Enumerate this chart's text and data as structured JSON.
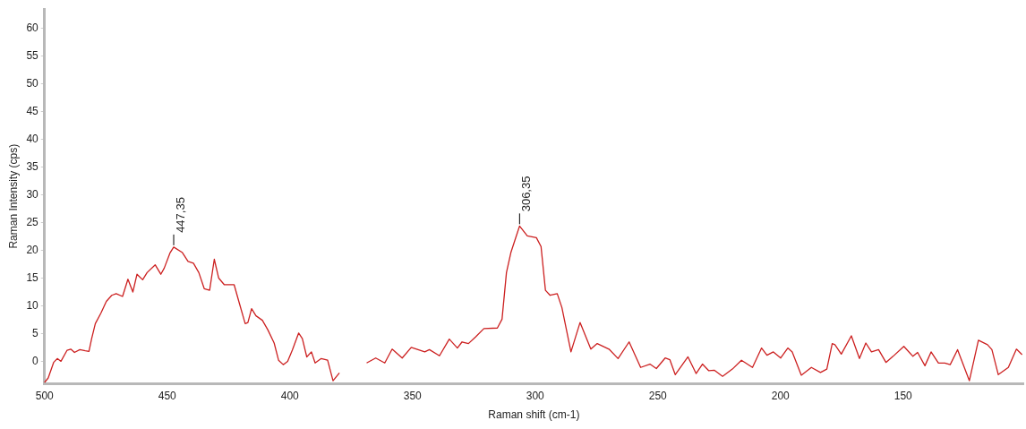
{
  "chart_data": {
    "type": "line",
    "xlabel": "Raman shift (cm-1)",
    "ylabel": "Raman Intensity (cps)",
    "xlim": [
      500,
      101
    ],
    "ylim": [
      -4,
      63.5
    ],
    "xticks": [
      500,
      450,
      400,
      350,
      300,
      250,
      200,
      150
    ],
    "yticks": [
      0,
      5,
      10,
      15,
      20,
      25,
      30,
      35,
      40,
      45,
      50,
      55,
      60
    ],
    "grid": false,
    "legend": false,
    "marker": "none",
    "line_style": "solid",
    "series": [
      {
        "color": "#cc2020",
        "x": [
          500,
          498.5,
          496.3,
          494.8,
          493.3,
          490.8,
          489.3,
          487.8,
          485.6,
          483.4,
          481.9,
          480.8,
          479.3,
          477,
          474.8,
          472.6,
          470.8,
          468.2,
          466,
          464,
          462.3,
          460,
          458.2,
          454.9,
          452.6,
          451.2,
          448.9,
          447.35,
          443.8,
          441.5,
          439.3,
          437.1,
          434.9,
          432.7,
          430.8,
          429,
          426.7,
          425.2,
          422.7,
          420.8,
          418.2,
          417.1,
          415.6,
          413.8,
          411.2,
          409,
          406.4,
          404.6,
          402.7,
          400.9,
          399,
          396.4,
          394.9,
          393.1,
          391.2,
          389.7,
          387.2,
          384.6,
          382.4,
          379.8,
          378,
          372.7,
          368.7,
          365,
          361.3,
          358.3,
          354.2,
          350.5,
          345,
          343.1,
          339,
          335,
          331.7,
          329.8,
          327.2,
          324.3,
          320.9,
          315.4,
          313.5,
          311.7,
          309.9,
          306.35,
          303.2,
          299.5,
          297.6,
          295.8,
          293.9,
          291,
          289.1,
          285.4,
          281.7,
          277.3,
          274.7,
          269.9,
          266.2,
          261.7,
          257,
          253.2,
          250.6,
          247,
          245.1,
          242.9,
          237.7,
          234.4,
          231.8,
          229.2,
          227,
          223.6,
          219.6,
          215.9,
          211.4,
          207.7,
          205.5,
          202.9,
          199.9,
          197,
          195.2,
          191.5,
          187.4,
          183.7,
          181.1,
          178.9,
          177.8,
          175.2,
          171.1,
          167.8,
          165.2,
          162.9,
          160,
          157,
          154.1,
          149.7,
          146,
          144.1,
          141.1,
          138.6,
          135.6,
          133,
          130.8,
          127.8,
          123,
          119.3,
          115.6,
          113.8,
          111.2,
          107.1,
          103.8,
          101.5
        ],
        "values": [
          -3.8,
          -3,
          -0.2,
          0.5,
          0,
          2,
          2.2,
          1.6,
          2.1,
          1.9,
          1.8,
          4.1,
          6.8,
          8.7,
          10.8,
          11.9,
          12.2,
          11.7,
          14.8,
          12.5,
          15.7,
          14.7,
          16,
          17.4,
          15.7,
          16.8,
          19.5,
          20.6,
          19.6,
          18,
          17.7,
          16,
          13.1,
          12.8,
          18.4,
          15,
          13.8,
          13.8,
          13.8,
          10.8,
          6.8,
          7,
          9.5,
          8.2,
          7.4,
          5.7,
          3.3,
          0.2,
          -0.6,
          0,
          2,
          5.1,
          4.1,
          0.8,
          1.7,
          -0.3,
          0.5,
          0.2,
          -3.5,
          -2.1,
          null,
          null,
          -0.3,
          0.6,
          -0.3,
          2.2,
          0.6,
          2.5,
          1.7,
          2.1,
          1,
          4,
          2.4,
          3.5,
          3.2,
          4.4,
          5.9,
          6,
          7.6,
          16,
          19.6,
          24.4,
          22.6,
          22.3,
          20.7,
          12.8,
          11.9,
          12.2,
          9.7,
          1.7,
          7,
          2.2,
          3.2,
          2.2,
          0.5,
          3.5,
          -1.1,
          -0.5,
          -1.3,
          0.6,
          0.3,
          -2.4,
          0.8,
          -2.2,
          -0.5,
          -1.7,
          -1.6,
          -2.7,
          -1.4,
          0.2,
          -1.1,
          2.4,
          1.1,
          1.7,
          0.6,
          2.4,
          1.7,
          -2.5,
          -1.1,
          -2,
          -1.4,
          3.2,
          3,
          1.3,
          4.6,
          0.5,
          3.3,
          1.7,
          2.1,
          -0.2,
          0.9,
          2.7,
          0.9,
          1.6,
          -0.8,
          1.7,
          -0.3,
          -0.3,
          -0.6,
          2.1,
          -3.5,
          3.8,
          3,
          2.1,
          -2.4,
          -1.1,
          2.2,
          1.2
        ]
      }
    ],
    "annotations": [
      {
        "text": "447,35",
        "x": 447.35,
        "y": 20.6
      },
      {
        "text": "306,35",
        "x": 306.35,
        "y": 24.4
      }
    ]
  }
}
